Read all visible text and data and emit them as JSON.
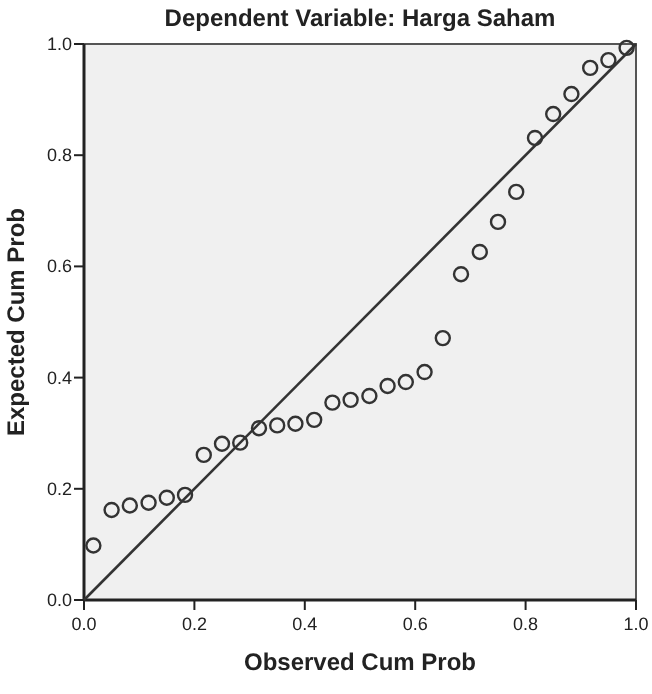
{
  "chart_data": {
    "type": "scatter",
    "title": "Dependent Variable: Harga Saham",
    "xlabel": "Observed Cum Prob",
    "ylabel": "Expected Cum Prob",
    "xlim": [
      0,
      1
    ],
    "ylim": [
      0,
      1
    ],
    "xticks": [
      {
        "value": 0,
        "label": "0.0"
      },
      {
        "value": 0.2,
        "label": "0.2"
      },
      {
        "value": 0.4,
        "label": "0.4"
      },
      {
        "value": 0.6,
        "label": "0.6"
      },
      {
        "value": 0.8,
        "label": "0.8"
      },
      {
        "value": 1,
        "label": "1.0"
      }
    ],
    "yticks": [
      {
        "value": 0,
        "label": "0.0"
      },
      {
        "value": 0.2,
        "label": "0.2"
      },
      {
        "value": 0.4,
        "label": "0.4"
      },
      {
        "value": 0.6,
        "label": "0.6"
      },
      {
        "value": 0.8,
        "label": "0.8"
      },
      {
        "value": 1,
        "label": "1.0"
      }
    ],
    "grid": false,
    "marker": "circle",
    "series": [
      {
        "color": "#333333",
        "x": [
          0.017,
          0.05,
          0.083,
          0.117,
          0.15,
          0.183,
          0.217,
          0.25,
          0.283,
          0.317,
          0.35,
          0.383,
          0.417,
          0.45,
          0.483,
          0.517,
          0.55,
          0.583,
          0.617,
          0.65,
          0.683,
          0.717,
          0.75,
          0.783,
          0.817,
          0.85,
          0.883,
          0.917,
          0.95,
          0.983
        ],
        "values": [
          0.098,
          0.162,
          0.17,
          0.175,
          0.184,
          0.189,
          0.261,
          0.281,
          0.283,
          0.309,
          0.314,
          0.317,
          0.324,
          0.355,
          0.36,
          0.367,
          0.385,
          0.392,
          0.41,
          0.471,
          0.586,
          0.626,
          0.68,
          0.734,
          0.831,
          0.874,
          0.91,
          0.957,
          0.971,
          0.993
        ]
      },
      {
        "type": "line",
        "color": "#333333",
        "x": [
          0,
          1
        ],
        "values": [
          0,
          1
        ],
        "marker": "none",
        "line_style": "solid"
      }
    ]
  }
}
